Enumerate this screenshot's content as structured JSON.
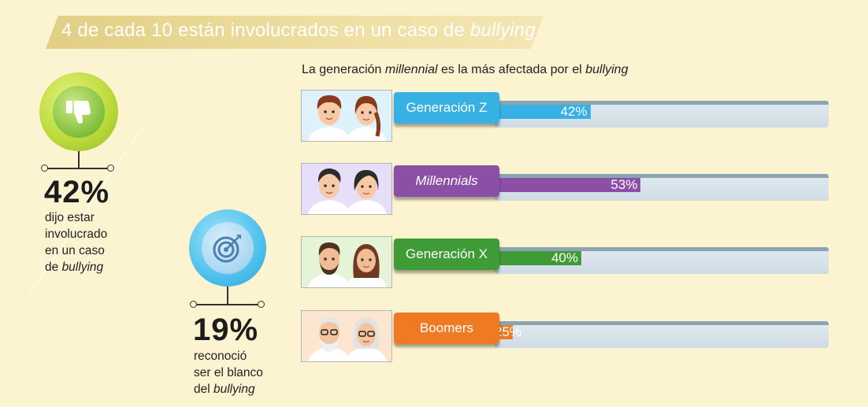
{
  "header": {
    "title_prefix": "4 de cada 10 están involucrados en un caso de ",
    "title_emph": "bullying"
  },
  "subtitle": {
    "part1": "La generación ",
    "emph1": "millennial",
    "part2": " es la más afectada por el ",
    "emph2": "bullying"
  },
  "stats": [
    {
      "value": "42%",
      "lines": [
        "dijo estar",
        "involucrado",
        "en un caso",
        "de "
      ],
      "emph": "bullying",
      "icon": "thumbs-down-icon",
      "color": "#8cc63f"
    },
    {
      "value": "19%",
      "lines": [
        "reconoció",
        "ser el blanco",
        "del "
      ],
      "emph": "bullying",
      "icon": "target-icon",
      "color": "#3fb3e6"
    }
  ],
  "chart_data": {
    "type": "bar",
    "title": "La generación millennial es la más afectada por el bullying",
    "categories": [
      "Generación Z",
      "Millennials",
      "Generación X",
      "Boomers"
    ],
    "values": [
      42,
      53,
      40,
      25
    ],
    "value_labels": [
      "42%",
      "53%",
      "40%",
      "25%"
    ],
    "ylim": [
      0,
      100
    ],
    "unit": "%",
    "colors": [
      "#37b0e3",
      "#8b4fa6",
      "#3f9b35",
      "#ee7b23"
    ],
    "legend": "none",
    "grid": false
  }
}
